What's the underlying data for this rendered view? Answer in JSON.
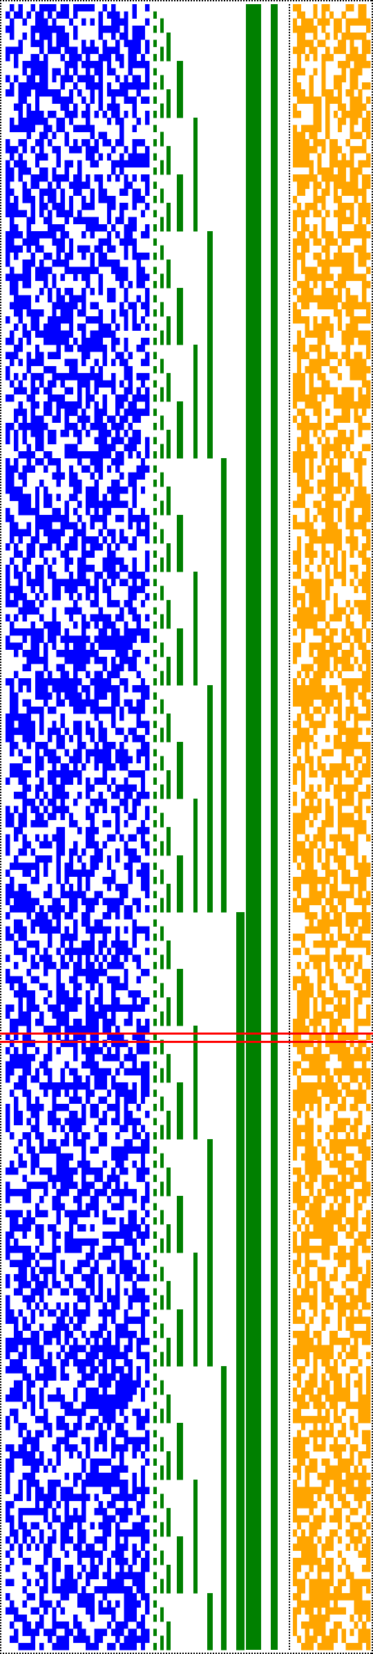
{
  "colors": {
    "background": "#ffffff",
    "border": "#000000",
    "random_cells": "#0000ff",
    "counter_bits": "#008000",
    "checksum_cells": "#ffa500",
    "highlight_lines": "#ff0000"
  },
  "rows": 232,
  "regions": {
    "random": {
      "columns": 34
    },
    "counter": {
      "bits": 8
    },
    "checksum": {
      "columns": 19
    }
  },
  "highlight_row": 144
}
